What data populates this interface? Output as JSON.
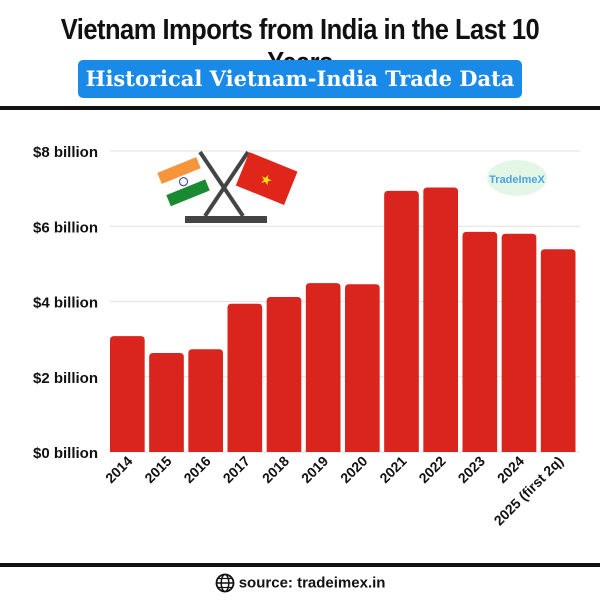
{
  "title": "Vietnam Imports from India in the Last 10 Years",
  "subtitle": "Historical Vietnam-India Trade Data",
  "watermark": "TradeImeX",
  "footer": {
    "icon": "globe-icon",
    "source": "source: tradeimex.in"
  },
  "colors": {
    "bar": "#d9251d",
    "subtitle_bg": "#1a8ae8"
  },
  "chart_data": {
    "type": "bar",
    "title": "Vietnam Imports from India in the Last 10 Years",
    "xlabel": "",
    "ylabel": "",
    "categories": [
      "2014",
      "2015",
      "2016",
      "2017",
      "2018",
      "2019",
      "2020",
      "2021",
      "2022",
      "2023",
      "2024",
      "2025 (first 2q)"
    ],
    "values": [
      3.08,
      2.63,
      2.73,
      3.94,
      4.12,
      4.49,
      4.46,
      6.94,
      7.03,
      5.85,
      5.8,
      5.39
    ],
    "unit": "billion USD",
    "ylim": [
      0,
      8
    ],
    "yticks": [
      0,
      2,
      4,
      6,
      8
    ],
    "ytick_labels": [
      "$0 billion",
      "$2 billion",
      "$4 billion",
      "$6 billion",
      "$8 billion"
    ],
    "grid": true,
    "legend": "none"
  }
}
